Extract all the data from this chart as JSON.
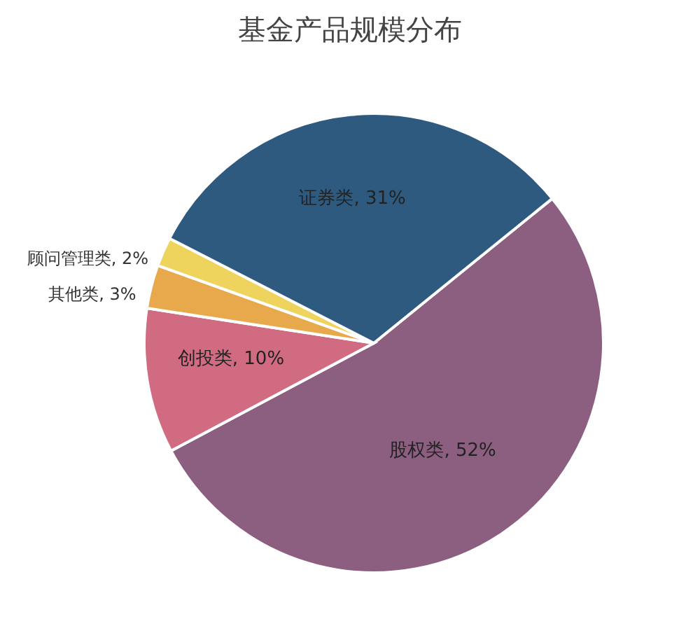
{
  "chart_data": {
    "type": "pie",
    "title": "基金产品规模分布",
    "categories": [
      "股权类",
      "创投类",
      "其他类",
      "顾问管理类",
      "证券类"
    ],
    "values": [
      52,
      10,
      3,
      2,
      31
    ],
    "value_labels": [
      "52%",
      "10%",
      "3%",
      "2%",
      "31%"
    ],
    "colors": [
      "#8c5f80",
      "#d06b82",
      "#e8a94c",
      "#eed35c",
      "#2f5a80"
    ]
  }
}
